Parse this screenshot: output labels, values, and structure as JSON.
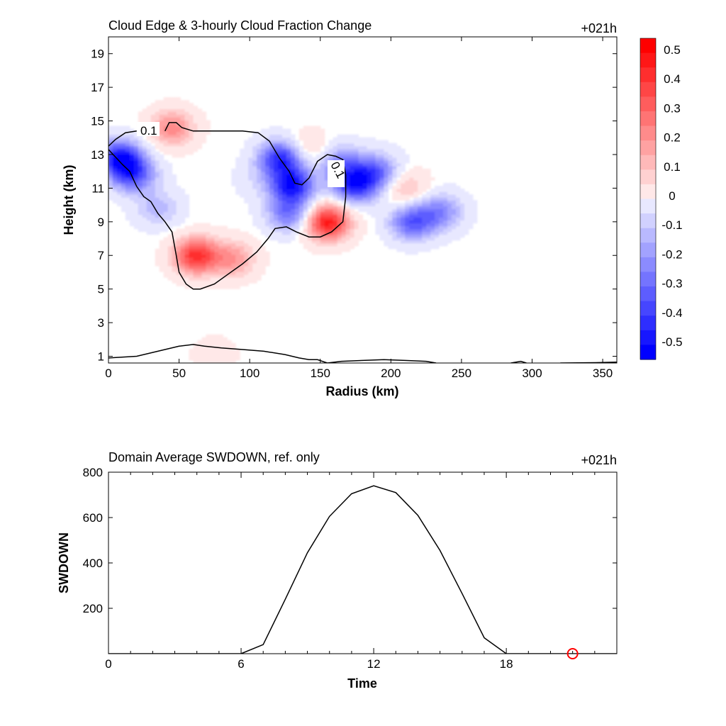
{
  "chart_data": [
    {
      "type": "heatmap",
      "title": "Cloud Edge & 3-hourly Cloud Fraction Change",
      "time_label": "+021h",
      "xlabel": "Radius (km)",
      "ylabel": "Height (km)",
      "xlim": [
        0,
        360
      ],
      "ylim": [
        0.6,
        20
      ],
      "xticks": [
        0,
        50,
        100,
        150,
        200,
        250,
        300,
        350
      ],
      "yticks": [
        1,
        3,
        5,
        7,
        9,
        11,
        13,
        15,
        17,
        19
      ],
      "colorbar": {
        "ticks": [
          "0.5",
          "0.4",
          "0.3",
          "0.2",
          "0.1",
          "0",
          "-0.1",
          "-0.2",
          "-0.3",
          "-0.4",
          "-0.5"
        ],
        "positive_color": "#ff0000",
        "negative_color": "#0000ff",
        "zero_color": "#ffffff"
      },
      "contour_level_label": "0.1",
      "contours": [
        [
          [
            0,
            13.3
          ],
          [
            10,
            12.4
          ],
          [
            15,
            12.0
          ],
          [
            20,
            11.1
          ],
          [
            25,
            10.5
          ],
          [
            30,
            10.2
          ],
          [
            35,
            9.5
          ],
          [
            40,
            9.0
          ],
          [
            45,
            8.4
          ],
          [
            48,
            7.0
          ],
          [
            50,
            6.0
          ],
          [
            55,
            5.3
          ],
          [
            60,
            5.0
          ],
          [
            65,
            5.0
          ],
          [
            75,
            5.3
          ],
          [
            85,
            5.9
          ],
          [
            95,
            6.5
          ],
          [
            105,
            7.2
          ],
          [
            113,
            8.0
          ],
          [
            118,
            8.6
          ],
          [
            126,
            8.7
          ],
          [
            133,
            8.4
          ],
          [
            142,
            8.1
          ],
          [
            150,
            8.1
          ],
          [
            158,
            8.4
          ],
          [
            166,
            9.0
          ],
          [
            168,
            10.5
          ],
          [
            168,
            11.8
          ],
          [
            166,
            12.7
          ],
          [
            161,
            12.9
          ],
          [
            155,
            13.0
          ],
          [
            148,
            12.6
          ],
          [
            142,
            11.6
          ],
          [
            137,
            11.2
          ],
          [
            132,
            11.3
          ],
          [
            128,
            12.0
          ],
          [
            121,
            12.8
          ],
          [
            114,
            13.8
          ],
          [
            106,
            14.3
          ],
          [
            95,
            14.4
          ],
          [
            80,
            14.4
          ],
          [
            60,
            14.4
          ],
          [
            52,
            14.6
          ],
          [
            48,
            14.9
          ],
          [
            43,
            14.9
          ],
          [
            40,
            14.4
          ]
        ],
        [
          [
            0,
            13.5
          ],
          [
            5,
            13.9
          ],
          [
            12,
            14.3
          ],
          [
            20,
            14.4
          ]
        ],
        [
          [
            0,
            0.9
          ],
          [
            20,
            1.0
          ],
          [
            35,
            1.3
          ],
          [
            50,
            1.6
          ],
          [
            60,
            1.7
          ],
          [
            68,
            1.6
          ],
          [
            80,
            1.5
          ],
          [
            95,
            1.4
          ],
          [
            110,
            1.3
          ],
          [
            125,
            1.1
          ],
          [
            135,
            0.9
          ],
          [
            142,
            0.8
          ],
          [
            148,
            0.8
          ],
          [
            155,
            0.6
          ]
        ],
        [
          [
            155,
            0.6
          ],
          [
            165,
            0.7
          ],
          [
            180,
            0.75
          ],
          [
            195,
            0.8
          ],
          [
            210,
            0.75
          ],
          [
            225,
            0.7
          ],
          [
            232,
            0.6
          ]
        ],
        [
          [
            285,
            0.6
          ],
          [
            292,
            0.7
          ],
          [
            296,
            0.6
          ]
        ],
        [
          [
            320,
            0.6
          ],
          [
            345,
            0.62
          ],
          [
            360,
            0.65
          ]
        ]
      ],
      "blobs": [
        {
          "x": 62,
          "y": 7.0,
          "v": 0.45
        },
        {
          "x": 88,
          "y": 6.8,
          "v": 0.22
        },
        {
          "x": 155,
          "y": 9.0,
          "v": 0.5
        },
        {
          "x": 45,
          "y": 14.6,
          "v": 0.25
        },
        {
          "x": 140,
          "y": 13.3,
          "v": 0.12
        },
        {
          "x": 210,
          "y": 11.0,
          "v": 0.15
        },
        {
          "x": 75,
          "y": 1.1,
          "v": 0.05
        },
        {
          "x": 8,
          "y": 12.8,
          "v": -0.5
        },
        {
          "x": 18,
          "y": 11.8,
          "v": -0.35
        },
        {
          "x": 35,
          "y": 9.8,
          "v": -0.15
        },
        {
          "x": 122,
          "y": 12.8,
          "v": -0.45
        },
        {
          "x": 130,
          "y": 11.2,
          "v": -0.5
        },
        {
          "x": 128,
          "y": 9.5,
          "v": -0.3
        },
        {
          "x": 175,
          "y": 11.2,
          "v": -0.45
        },
        {
          "x": 190,
          "y": 12.0,
          "v": -0.3
        },
        {
          "x": 165,
          "y": 12.5,
          "v": -0.25
        },
        {
          "x": 215,
          "y": 9.0,
          "v": -0.35
        },
        {
          "x": 235,
          "y": 9.6,
          "v": -0.25
        },
        {
          "x": 105,
          "y": 11.5,
          "v": -0.05
        }
      ]
    },
    {
      "type": "line",
      "title": "Domain Average SWDOWN, ref. only",
      "time_label": "+021h",
      "xlabel": "Time",
      "ylabel": "SWDOWN",
      "xlim": [
        0,
        23
      ],
      "ylim": [
        0,
        800
      ],
      "xticks": [
        0,
        6,
        12,
        18
      ],
      "yticks": [
        200,
        400,
        600,
        800
      ],
      "x": [
        0,
        1,
        2,
        3,
        4,
        5,
        6,
        7,
        8,
        9,
        10,
        11,
        12,
        13,
        14,
        15,
        16,
        17,
        18,
        19,
        20,
        21,
        22,
        23
      ],
      "values": [
        0,
        0,
        0,
        0,
        0,
        0,
        0,
        40,
        240,
        445,
        605,
        705,
        740,
        710,
        610,
        455,
        265,
        70,
        0,
        0,
        0,
        0,
        0,
        0
      ],
      "marker": {
        "x": 21,
        "y": 0,
        "color": "#ff0000"
      }
    }
  ]
}
